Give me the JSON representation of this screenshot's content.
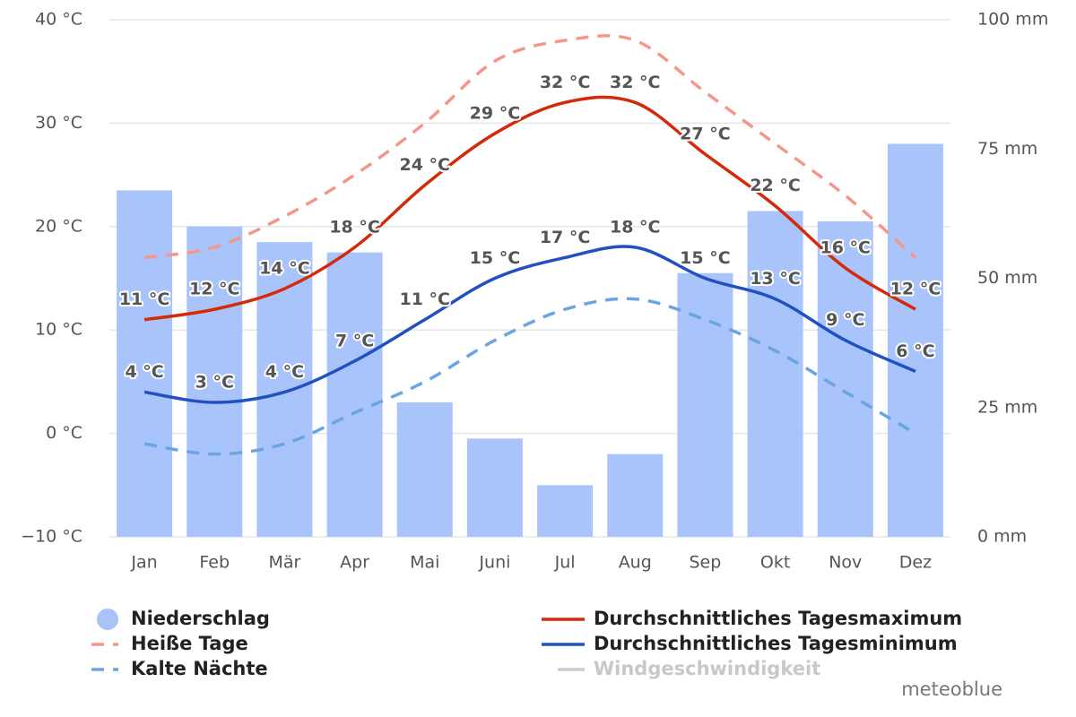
{
  "chart_data": {
    "type": "climate",
    "categories": [
      "Jan",
      "Feb",
      "Mär",
      "Apr",
      "Mai",
      "Juni",
      "Jul",
      "Aug",
      "Sep",
      "Okt",
      "Nov",
      "Dez"
    ],
    "ylim": [
      -10,
      40
    ],
    "yticks": [
      {
        "value": -10,
        "label": "−10 °C"
      },
      {
        "value": 0,
        "label": "0 °C"
      },
      {
        "value": 10,
        "label": "10 °C"
      },
      {
        "value": 20,
        "label": "20 °C"
      },
      {
        "value": 30,
        "label": "30 °C"
      },
      {
        "value": 40,
        "label": "40 °C"
      }
    ],
    "y2lim": [
      0,
      100
    ],
    "y2ticks": [
      {
        "value": 0,
        "label": "0 mm"
      },
      {
        "value": 25,
        "label": "25 mm"
      },
      {
        "value": 50,
        "label": "50 mm"
      },
      {
        "value": 75,
        "label": "75 mm"
      },
      {
        "value": 100,
        "label": "100 mm"
      }
    ],
    "grid": true,
    "series": [
      {
        "name": "Niederschlag",
        "kind": "bar",
        "axis": "y2",
        "color": "#a9c4fa",
        "values": [
          67,
          60,
          57,
          55,
          26,
          19,
          10,
          16,
          51,
          63,
          61,
          76
        ]
      },
      {
        "name": "Heiße Tage",
        "kind": "line",
        "style": "dashed",
        "color": "#f4978a",
        "values": [
          17,
          18,
          21,
          25,
          30,
          36,
          38,
          38,
          33,
          28,
          23,
          17
        ]
      },
      {
        "name": "Kalte Nächte",
        "kind": "line",
        "style": "dashed",
        "color": "#6ba4e0",
        "values": [
          -1,
          -2,
          -1,
          2,
          5,
          9,
          12,
          13,
          11,
          8,
          4,
          0
        ]
      },
      {
        "name": "Durchschnittliches Tagesmaximum",
        "kind": "line",
        "style": "solid",
        "color": "#d42a0a",
        "label_color": "#9c3000",
        "values": [
          11,
          12,
          14,
          18,
          24,
          29,
          32,
          32,
          27,
          22,
          16,
          12
        ],
        "value_labels": [
          "11 °C",
          "12 °C",
          "14 °C",
          "18 °C",
          "24 °C",
          "29 °C",
          "32 °C",
          "32 °C",
          "27 °C",
          "22 °C",
          "16 °C",
          "12 °C"
        ]
      },
      {
        "name": "Durchschnittliches Tagesminimum",
        "kind": "line",
        "style": "solid",
        "color": "#2150c0",
        "label_color": "#2a4fb5",
        "values": [
          4,
          3,
          4,
          7,
          11,
          15,
          17,
          18,
          15,
          13,
          9,
          6
        ],
        "value_labels": [
          "4 °C",
          "3 °C",
          "4 °C",
          "7 °C",
          "11 °C",
          "15 °C",
          "17 °C",
          "18 °C",
          "15 °C",
          "13 °C",
          "9 °C",
          "6 °C"
        ]
      }
    ],
    "legend_disabled": [
      {
        "name": "Windgeschwindigkeit",
        "color": "#cccccc"
      }
    ],
    "credit": "meteoblue"
  }
}
